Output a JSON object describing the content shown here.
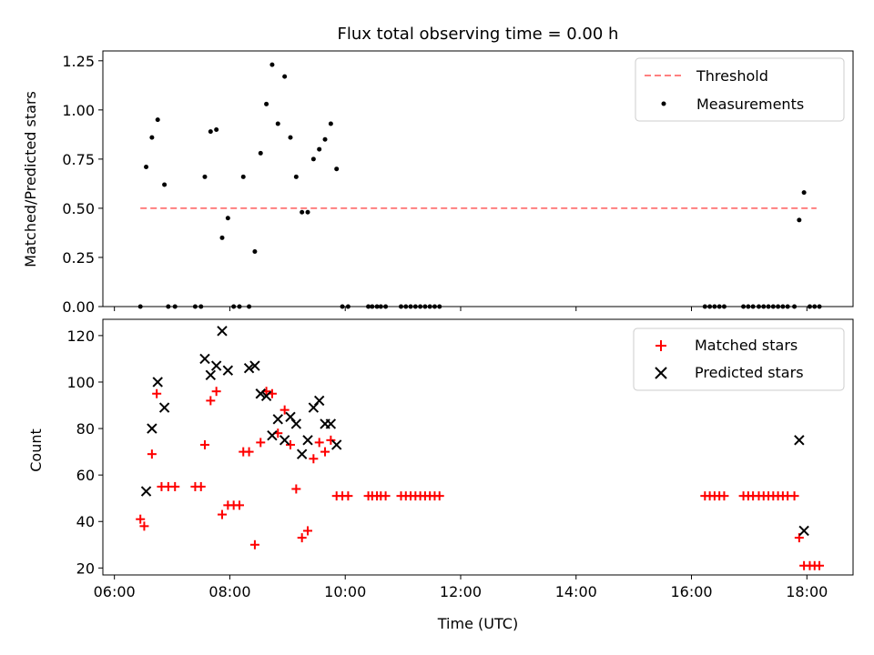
{
  "title": "Flux total observing time = 0.00 h",
  "x_axis": {
    "label": "Time (UTC)",
    "ticks": [
      "06:00",
      "08:00",
      "10:00",
      "12:00",
      "14:00",
      "16:00",
      "18:00"
    ],
    "tick_hours": [
      6,
      8,
      10,
      12,
      14,
      16,
      18
    ],
    "range_hours": [
      5.8,
      18.8
    ]
  },
  "chart_data": [
    {
      "type": "scatter",
      "panel": "top",
      "ylabel": "Matched/Predicted stars",
      "ylim": [
        0,
        1.3
      ],
      "yticks": [
        "0.00",
        "0.25",
        "0.50",
        "0.75",
        "1.00",
        "1.25"
      ],
      "ytick_values": [
        0,
        0.25,
        0.5,
        0.75,
        1.0,
        1.25
      ],
      "legend_position": "top-right",
      "threshold": {
        "name": "Threshold",
        "value": 0.5,
        "x_range": [
          "06:27",
          "18:10"
        ],
        "color": "#ff7f7f"
      },
      "series": [
        {
          "name": "Measurements",
          "color": "#000000",
          "points": [
            [
              "06:27",
              0.0
            ],
            [
              "06:33",
              0.71
            ],
            [
              "06:39",
              0.86
            ],
            [
              "06:45",
              0.95
            ],
            [
              "06:52",
              0.62
            ],
            [
              "06:56",
              0.0
            ],
            [
              "07:03",
              0.0
            ],
            [
              "07:24",
              0.0
            ],
            [
              "07:30",
              0.0
            ],
            [
              "07:34",
              0.66
            ],
            [
              "07:40",
              0.89
            ],
            [
              "07:46",
              0.9
            ],
            [
              "07:52",
              0.35
            ],
            [
              "07:58",
              0.45
            ],
            [
              "08:04",
              0.0
            ],
            [
              "08:10",
              0.0
            ],
            [
              "08:14",
              0.66
            ],
            [
              "08:20",
              0.0
            ],
            [
              "08:26",
              0.28
            ],
            [
              "08:32",
              0.78
            ],
            [
              "08:38",
              1.03
            ],
            [
              "08:44",
              1.23
            ],
            [
              "08:50",
              0.93
            ],
            [
              "08:57",
              1.17
            ],
            [
              "09:03",
              0.86
            ],
            [
              "09:09",
              0.66
            ],
            [
              "09:15",
              0.48
            ],
            [
              "09:21",
              0.48
            ],
            [
              "09:27",
              0.75
            ],
            [
              "09:33",
              0.8
            ],
            [
              "09:39",
              0.85
            ],
            [
              "09:45",
              0.93
            ],
            [
              "09:51",
              0.7
            ],
            [
              "09:57",
              0.0
            ],
            [
              "10:03",
              0.0
            ],
            [
              "10:24",
              0.0
            ],
            [
              "10:28",
              0.0
            ],
            [
              "10:33",
              0.0
            ],
            [
              "10:37",
              0.0
            ],
            [
              "10:42",
              0.0
            ],
            [
              "10:58",
              0.0
            ],
            [
              "11:03",
              0.0
            ],
            [
              "11:08",
              0.0
            ],
            [
              "11:13",
              0.0
            ],
            [
              "11:18",
              0.0
            ],
            [
              "11:23",
              0.0
            ],
            [
              "11:28",
              0.0
            ],
            [
              "11:33",
              0.0
            ],
            [
              "11:38",
              0.0
            ],
            [
              "16:14",
              0.0
            ],
            [
              "16:19",
              0.0
            ],
            [
              "16:24",
              0.0
            ],
            [
              "16:29",
              0.0
            ],
            [
              "16:34",
              0.0
            ],
            [
              "16:54",
              0.0
            ],
            [
              "16:59",
              0.0
            ],
            [
              "17:04",
              0.0
            ],
            [
              "17:10",
              0.0
            ],
            [
              "17:15",
              0.0
            ],
            [
              "17:20",
              0.0
            ],
            [
              "17:25",
              0.0
            ],
            [
              "17:30",
              0.0
            ],
            [
              "17:35",
              0.0
            ],
            [
              "17:40",
              0.0
            ],
            [
              "17:47",
              0.0
            ],
            [
              "17:52",
              0.44
            ],
            [
              "17:57",
              0.58
            ],
            [
              "18:03",
              0.0
            ],
            [
              "18:08",
              0.0
            ],
            [
              "18:13",
              0.0
            ]
          ]
        }
      ]
    },
    {
      "type": "scatter",
      "panel": "bottom",
      "ylabel": "Count",
      "ylim": [
        17,
        127
      ],
      "yticks": [
        "20",
        "40",
        "60",
        "80",
        "100",
        "120"
      ],
      "ytick_values": [
        20,
        40,
        60,
        80,
        100,
        120
      ],
      "legend_position": "top-right",
      "series": [
        {
          "name": "Matched stars",
          "marker": "plus",
          "color": "#ff0000",
          "points": [
            [
              "06:27",
              41
            ],
            [
              "06:31",
              38
            ],
            [
              "06:39",
              69
            ],
            [
              "06:44",
              95
            ],
            [
              "06:49",
              55
            ],
            [
              "06:56",
              55
            ],
            [
              "07:03",
              55
            ],
            [
              "07:24",
              55
            ],
            [
              "07:30",
              55
            ],
            [
              "07:34",
              73
            ],
            [
              "07:40",
              92
            ],
            [
              "07:46",
              96
            ],
            [
              "07:52",
              43
            ],
            [
              "07:58",
              47
            ],
            [
              "08:04",
              47
            ],
            [
              "08:10",
              47
            ],
            [
              "08:14",
              70
            ],
            [
              "08:20",
              70
            ],
            [
              "08:26",
              30
            ],
            [
              "08:32",
              74
            ],
            [
              "08:38",
              96
            ],
            [
              "08:44",
              95
            ],
            [
              "08:50",
              78
            ],
            [
              "08:57",
              88
            ],
            [
              "09:03",
              73
            ],
            [
              "09:09",
              54
            ],
            [
              "09:15",
              33
            ],
            [
              "09:21",
              36
            ],
            [
              "09:27",
              67
            ],
            [
              "09:33",
              74
            ],
            [
              "09:39",
              70
            ],
            [
              "09:45",
              75
            ],
            [
              "09:51",
              51
            ],
            [
              "09:57",
              51
            ],
            [
              "10:03",
              51
            ],
            [
              "10:24",
              51
            ],
            [
              "10:28",
              51
            ],
            [
              "10:33",
              51
            ],
            [
              "10:37",
              51
            ],
            [
              "10:42",
              51
            ],
            [
              "10:58",
              51
            ],
            [
              "11:03",
              51
            ],
            [
              "11:08",
              51
            ],
            [
              "11:13",
              51
            ],
            [
              "11:18",
              51
            ],
            [
              "11:23",
              51
            ],
            [
              "11:28",
              51
            ],
            [
              "11:33",
              51
            ],
            [
              "11:38",
              51
            ],
            [
              "16:14",
              51
            ],
            [
              "16:19",
              51
            ],
            [
              "16:24",
              51
            ],
            [
              "16:29",
              51
            ],
            [
              "16:34",
              51
            ],
            [
              "16:54",
              51
            ],
            [
              "16:59",
              51
            ],
            [
              "17:04",
              51
            ],
            [
              "17:10",
              51
            ],
            [
              "17:15",
              51
            ],
            [
              "17:20",
              51
            ],
            [
              "17:25",
              51
            ],
            [
              "17:30",
              51
            ],
            [
              "17:35",
              51
            ],
            [
              "17:40",
              51
            ],
            [
              "17:47",
              51
            ],
            [
              "17:52",
              33
            ],
            [
              "17:57",
              21
            ],
            [
              "18:03",
              21
            ],
            [
              "18:08",
              21
            ],
            [
              "18:13",
              21
            ]
          ]
        },
        {
          "name": "Predicted stars",
          "marker": "x",
          "color": "#000000",
          "points": [
            [
              "06:33",
              53
            ],
            [
              "06:39",
              80
            ],
            [
              "06:45",
              100
            ],
            [
              "06:52",
              89
            ],
            [
              "07:34",
              110
            ],
            [
              "07:40",
              103
            ],
            [
              "07:46",
              107
            ],
            [
              "07:52",
              122
            ],
            [
              "07:58",
              105
            ],
            [
              "08:20",
              106
            ],
            [
              "08:26",
              107
            ],
            [
              "08:32",
              95
            ],
            [
              "08:38",
              94
            ],
            [
              "08:44",
              77
            ],
            [
              "08:50",
              84
            ],
            [
              "08:57",
              75
            ],
            [
              "09:03",
              85
            ],
            [
              "09:09",
              82
            ],
            [
              "09:15",
              69
            ],
            [
              "09:21",
              75
            ],
            [
              "09:27",
              89
            ],
            [
              "09:33",
              92
            ],
            [
              "09:39",
              82
            ],
            [
              "09:45",
              82
            ],
            [
              "09:51",
              73
            ],
            [
              "17:52",
              75
            ],
            [
              "17:57",
              36
            ]
          ]
        }
      ]
    }
  ]
}
